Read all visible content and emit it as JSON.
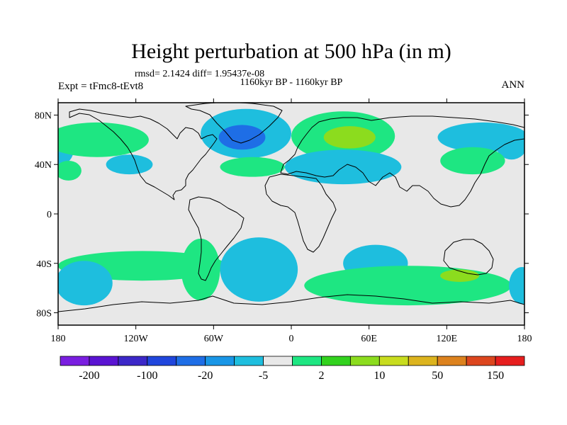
{
  "chart_data": {
    "type": "heatmap",
    "title": "Height perturbation at 500 hPa (in m)",
    "stats_line": "rmsd= 2.1424  diff= 1.95437e-08",
    "period_label": "1160kyr BP - 1160kyr BP",
    "left_label": "Expt = tFmc8-tEvt8",
    "right_label": "ANN",
    "x_range": [
      -180,
      180
    ],
    "y_range": [
      -90,
      90
    ],
    "x_ticks": [
      {
        "value": -180,
        "label": "180"
      },
      {
        "value": -120,
        "label": "120W"
      },
      {
        "value": -60,
        "label": "60W"
      },
      {
        "value": 0,
        "label": "0"
      },
      {
        "value": 60,
        "label": "60E"
      },
      {
        "value": 120,
        "label": "120E"
      },
      {
        "value": 180,
        "label": "180"
      }
    ],
    "y_ticks": [
      {
        "value": 80,
        "label": "80N"
      },
      {
        "value": 40,
        "label": "40N"
      },
      {
        "value": 0,
        "label": "0"
      },
      {
        "value": -40,
        "label": "40S"
      },
      {
        "value": -80,
        "label": "80S"
      }
    ],
    "colorbar": {
      "colors": [
        "#7a1ee0",
        "#5a14d2",
        "#3c28c8",
        "#2046dc",
        "#1e6ee6",
        "#1996e6",
        "#1ebede",
        "#e8e8e8",
        "#1ee682",
        "#32d21e",
        "#8cdc1e",
        "#c8dc1e",
        "#dcb41e",
        "#dc821e",
        "#dc461e",
        "#e61e1e"
      ],
      "labels": [
        {
          "index": 1,
          "text": "-200"
        },
        {
          "index": 3,
          "text": "-100"
        },
        {
          "index": 5,
          "text": "-20"
        },
        {
          "index": 7,
          "text": "-5"
        },
        {
          "index": 9,
          "text": "2"
        },
        {
          "index": 11,
          "text": "10"
        },
        {
          "index": 13,
          "text": "50"
        },
        {
          "index": 15,
          "text": "150"
        }
      ]
    },
    "anomaly_regions": [
      {
        "level": "-5",
        "lon": 170,
        "lat": 56,
        "rlon": 12,
        "rlat": 12
      },
      {
        "level": "-5",
        "lon": -178,
        "lat": 52,
        "rlon": 10,
        "rlat": 12
      },
      {
        "level": "2",
        "lon": -150,
        "lat": 60,
        "rlon": 40,
        "rlat": 14
      },
      {
        "level": "-5",
        "lon": -125,
        "lat": 40,
        "rlon": 18,
        "rlat": 8
      },
      {
        "level": "2",
        "lon": -172,
        "lat": 35,
        "rlon": 10,
        "rlat": 8
      },
      {
        "level": "-5",
        "lon": -35,
        "lat": 65,
        "rlon": 35,
        "rlat": 20
      },
      {
        "level": "-20",
        "lon": -38,
        "lat": 62,
        "rlon": 18,
        "rlat": 10
      },
      {
        "level": "2",
        "lon": -30,
        "lat": 38,
        "rlon": 25,
        "rlat": 8
      },
      {
        "level": "2",
        "lon": 40,
        "lat": 63,
        "rlon": 40,
        "rlat": 20
      },
      {
        "level": "10",
        "lon": 45,
        "lat": 62,
        "rlon": 20,
        "rlat": 9
      },
      {
        "level": "-5",
        "lon": 40,
        "lat": 38,
        "rlon": 45,
        "rlat": 14
      },
      {
        "level": "-5",
        "lon": 148,
        "lat": 62,
        "rlon": 35,
        "rlat": 12
      },
      {
        "level": "2",
        "lon": 140,
        "lat": 43,
        "rlon": 25,
        "rlat": 11
      },
      {
        "level": "2",
        "lon": -115,
        "lat": -42,
        "rlon": 65,
        "rlat": 12
      },
      {
        "level": "-5",
        "lon": -160,
        "lat": -56,
        "rlon": 22,
        "rlat": 18
      },
      {
        "level": "2",
        "lon": -70,
        "lat": -45,
        "rlon": 15,
        "rlat": 25
      },
      {
        "level": "-5",
        "lon": -25,
        "lat": -45,
        "rlon": 30,
        "rlat": 26
      },
      {
        "level": "-5",
        "lon": 65,
        "lat": -40,
        "rlon": 25,
        "rlat": 15
      },
      {
        "level": "2",
        "lon": 90,
        "lat": -58,
        "rlon": 80,
        "rlat": 16
      },
      {
        "level": "10",
        "lon": 130,
        "lat": -50,
        "rlon": 15,
        "rlat": 5
      },
      {
        "level": "-5",
        "lon": 178,
        "lat": -58,
        "rlon": 10,
        "rlat": 15
      }
    ]
  },
  "level_colors": {
    "-20": "#1e6ee6",
    "-5": "#1ebede",
    "2": "#1ee682",
    "10": "#8cdc1e"
  },
  "background_color": "#e8e8e8"
}
